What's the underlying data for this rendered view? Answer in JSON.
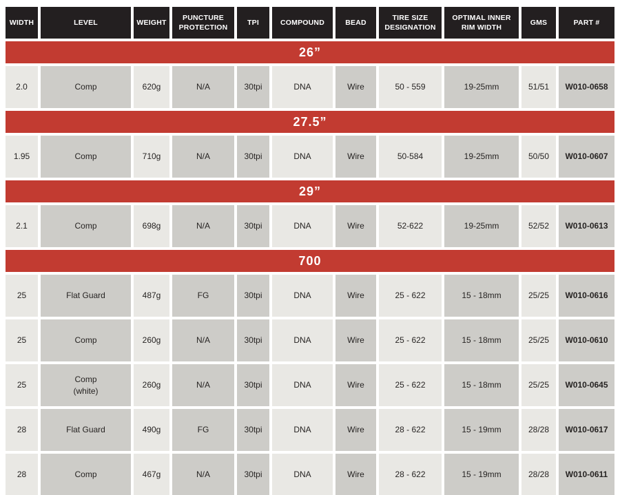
{
  "colors": {
    "header_bg": "#231f20",
    "header_text": "#ffffff",
    "band_bg": "#c23b31",
    "band_text": "#ffffff",
    "cell_light": "#e9e8e4",
    "cell_dark": "#cdccc8",
    "cell_text": "#262322",
    "page_bg": "#ffffff"
  },
  "table": {
    "columns": [
      {
        "key": "width",
        "label": "WIDTH",
        "shade": "light",
        "bold": false
      },
      {
        "key": "level",
        "label": "LEVEL",
        "shade": "dark",
        "bold": false
      },
      {
        "key": "weight",
        "label": "WEIGHT",
        "shade": "light",
        "bold": false
      },
      {
        "key": "puncture",
        "label": "PUNCTURE PROTECTION",
        "shade": "dark",
        "bold": false
      },
      {
        "key": "tpi",
        "label": "TPI",
        "shade": "dark",
        "bold": false
      },
      {
        "key": "compound",
        "label": "COMPOUND",
        "shade": "light",
        "bold": false
      },
      {
        "key": "bead",
        "label": "BEAD",
        "shade": "dark",
        "bold": false
      },
      {
        "key": "tiresize",
        "label": "TIRE SIZE DESIGNATION",
        "shade": "light",
        "bold": false
      },
      {
        "key": "rimwidth",
        "label": "OPTIMAL INNER RIM WIDTH",
        "shade": "dark",
        "bold": false
      },
      {
        "key": "gms",
        "label": "GMS",
        "shade": "light",
        "bold": false
      },
      {
        "key": "part",
        "label": "PART #",
        "shade": "dark",
        "bold": true
      }
    ],
    "sections": [
      {
        "label": "26”",
        "rows": [
          [
            "2.0",
            "Comp",
            "620g",
            "N/A",
            "30tpi",
            "DNA",
            "Wire",
            "50 - 559",
            "19-25mm",
            "51/51",
            "W010-0658"
          ]
        ]
      },
      {
        "label": "27.5”",
        "rows": [
          [
            "1.95",
            "Comp",
            "710g",
            "N/A",
            "30tpi",
            "DNA",
            "Wire",
            "50-584",
            "19-25mm",
            "50/50",
            "W010-0607"
          ]
        ]
      },
      {
        "label": "29”",
        "rows": [
          [
            "2.1",
            "Comp",
            "698g",
            "N/A",
            "30tpi",
            "DNA",
            "Wire",
            "52-622",
            "19-25mm",
            "52/52",
            "W010-0613"
          ]
        ]
      },
      {
        "label": "700",
        "rows": [
          [
            "25",
            "Flat Guard",
            "487g",
            "FG",
            "30tpi",
            "DNA",
            "Wire",
            "25 - 622",
            "15 - 18mm",
            "25/25",
            "W010-0616"
          ],
          [
            "25",
            "Comp",
            "260g",
            "N/A",
            "30tpi",
            "DNA",
            "Wire",
            "25 - 622",
            "15 - 18mm",
            "25/25",
            "W010-0610"
          ],
          [
            "25",
            "Comp\n(white)",
            "260g",
            "N/A",
            "30tpi",
            "DNA",
            "Wire",
            "25 - 622",
            "15 - 18mm",
            "25/25",
            "W010-0645"
          ],
          [
            "28",
            "Flat Guard",
            "490g",
            "FG",
            "30tpi",
            "DNA",
            "Wire",
            "28 - 622",
            "15 - 19mm",
            "28/28",
            "W010-0617"
          ],
          [
            "28",
            "Comp",
            "467g",
            "N/A",
            "30tpi",
            "DNA",
            "Wire",
            "28 - 622",
            "15 - 19mm",
            "28/28",
            "W010-0611"
          ]
        ]
      }
    ]
  }
}
